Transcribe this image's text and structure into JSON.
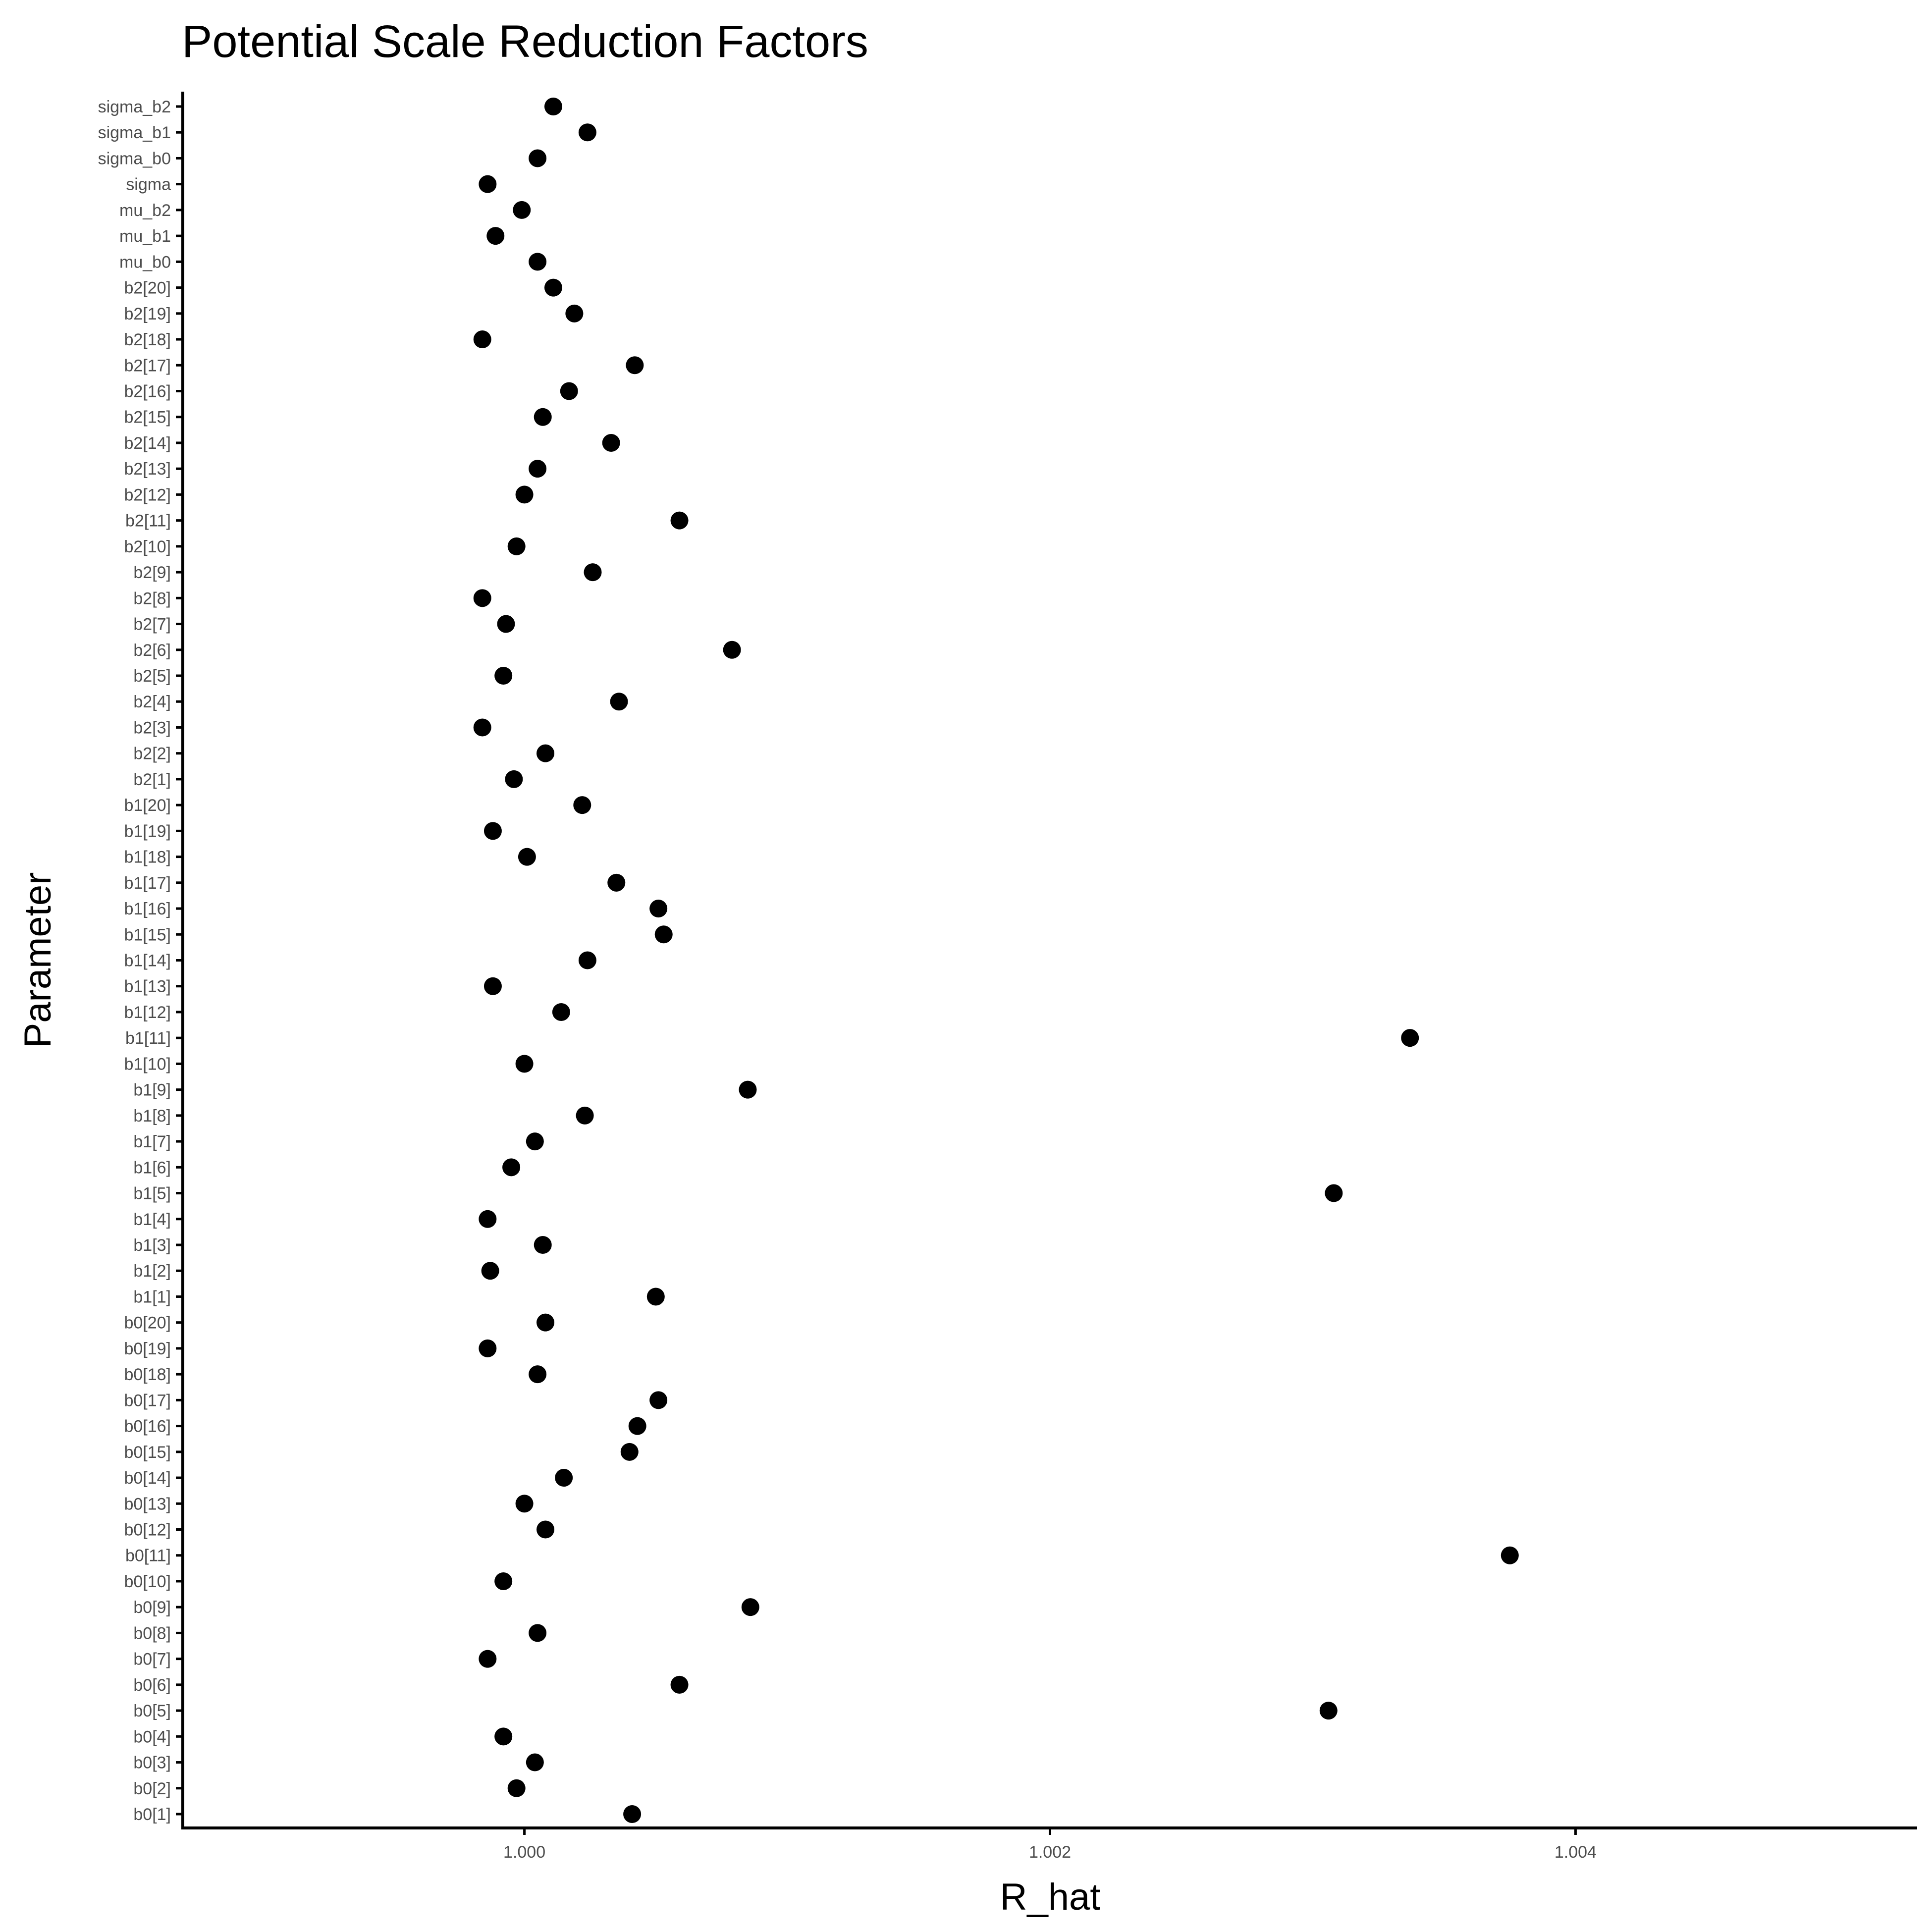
{
  "chart_data": {
    "type": "scatter",
    "title": "Potential Scale Reduction Factors",
    "xlabel": "R_hat",
    "ylabel": "Parameter",
    "xlim": [
      0.9987,
      1.0053
    ],
    "xticks": [
      1.0,
      1.002,
      1.004
    ],
    "xtick_labels": [
      "1.000",
      "1.002",
      "1.004"
    ],
    "grid": false,
    "legend": "none",
    "point_color": "#000000",
    "categories": [
      "b0[1]",
      "b0[2]",
      "b0[3]",
      "b0[4]",
      "b0[5]",
      "b0[6]",
      "b0[7]",
      "b0[8]",
      "b0[9]",
      "b0[10]",
      "b0[11]",
      "b0[12]",
      "b0[13]",
      "b0[14]",
      "b0[15]",
      "b0[16]",
      "b0[17]",
      "b0[18]",
      "b0[19]",
      "b0[20]",
      "b1[1]",
      "b1[2]",
      "b1[3]",
      "b1[4]",
      "b1[5]",
      "b1[6]",
      "b1[7]",
      "b1[8]",
      "b1[9]",
      "b1[10]",
      "b1[11]",
      "b1[12]",
      "b1[13]",
      "b1[14]",
      "b1[15]",
      "b1[16]",
      "b1[17]",
      "b1[18]",
      "b1[19]",
      "b1[20]",
      "b2[1]",
      "b2[2]",
      "b2[3]",
      "b2[4]",
      "b2[5]",
      "b2[6]",
      "b2[7]",
      "b2[8]",
      "b2[9]",
      "b2[10]",
      "b2[11]",
      "b2[12]",
      "b2[13]",
      "b2[14]",
      "b2[15]",
      "b2[16]",
      "b2[17]",
      "b2[18]",
      "b2[19]",
      "b2[20]",
      "mu_b0",
      "mu_b1",
      "mu_b2",
      "sigma",
      "sigma_b0",
      "sigma_b1",
      "sigma_b2"
    ],
    "values": [
      1.00041,
      0.99997,
      1.00004,
      0.99992,
      1.00306,
      1.00059,
      0.99986,
      1.00005,
      1.00086,
      0.99992,
      1.00375,
      1.00008,
      1.0,
      1.00015,
      1.0004,
      1.00043,
      1.00051,
      1.00005,
      0.99986,
      1.00008,
      1.0005,
      0.99987,
      1.00007,
      0.99986,
      1.00308,
      0.99995,
      1.00004,
      1.00023,
      1.00085,
      1.0,
      1.00337,
      1.00014,
      0.99988,
      1.00024,
      1.00053,
      1.00051,
      1.00035,
      1.00001,
      0.99988,
      1.00022,
      0.99996,
      1.00008,
      0.99984,
      1.00036,
      0.99992,
      1.00079,
      0.99993,
      0.99984,
      1.00026,
      0.99997,
      1.00059,
      1.0,
      1.00005,
      1.00033,
      1.00007,
      1.00017,
      1.00042,
      0.99984,
      1.00019,
      1.00011,
      1.00005,
      0.99989,
      0.99999,
      0.99986,
      1.00005,
      1.00024,
      1.00011
    ]
  }
}
